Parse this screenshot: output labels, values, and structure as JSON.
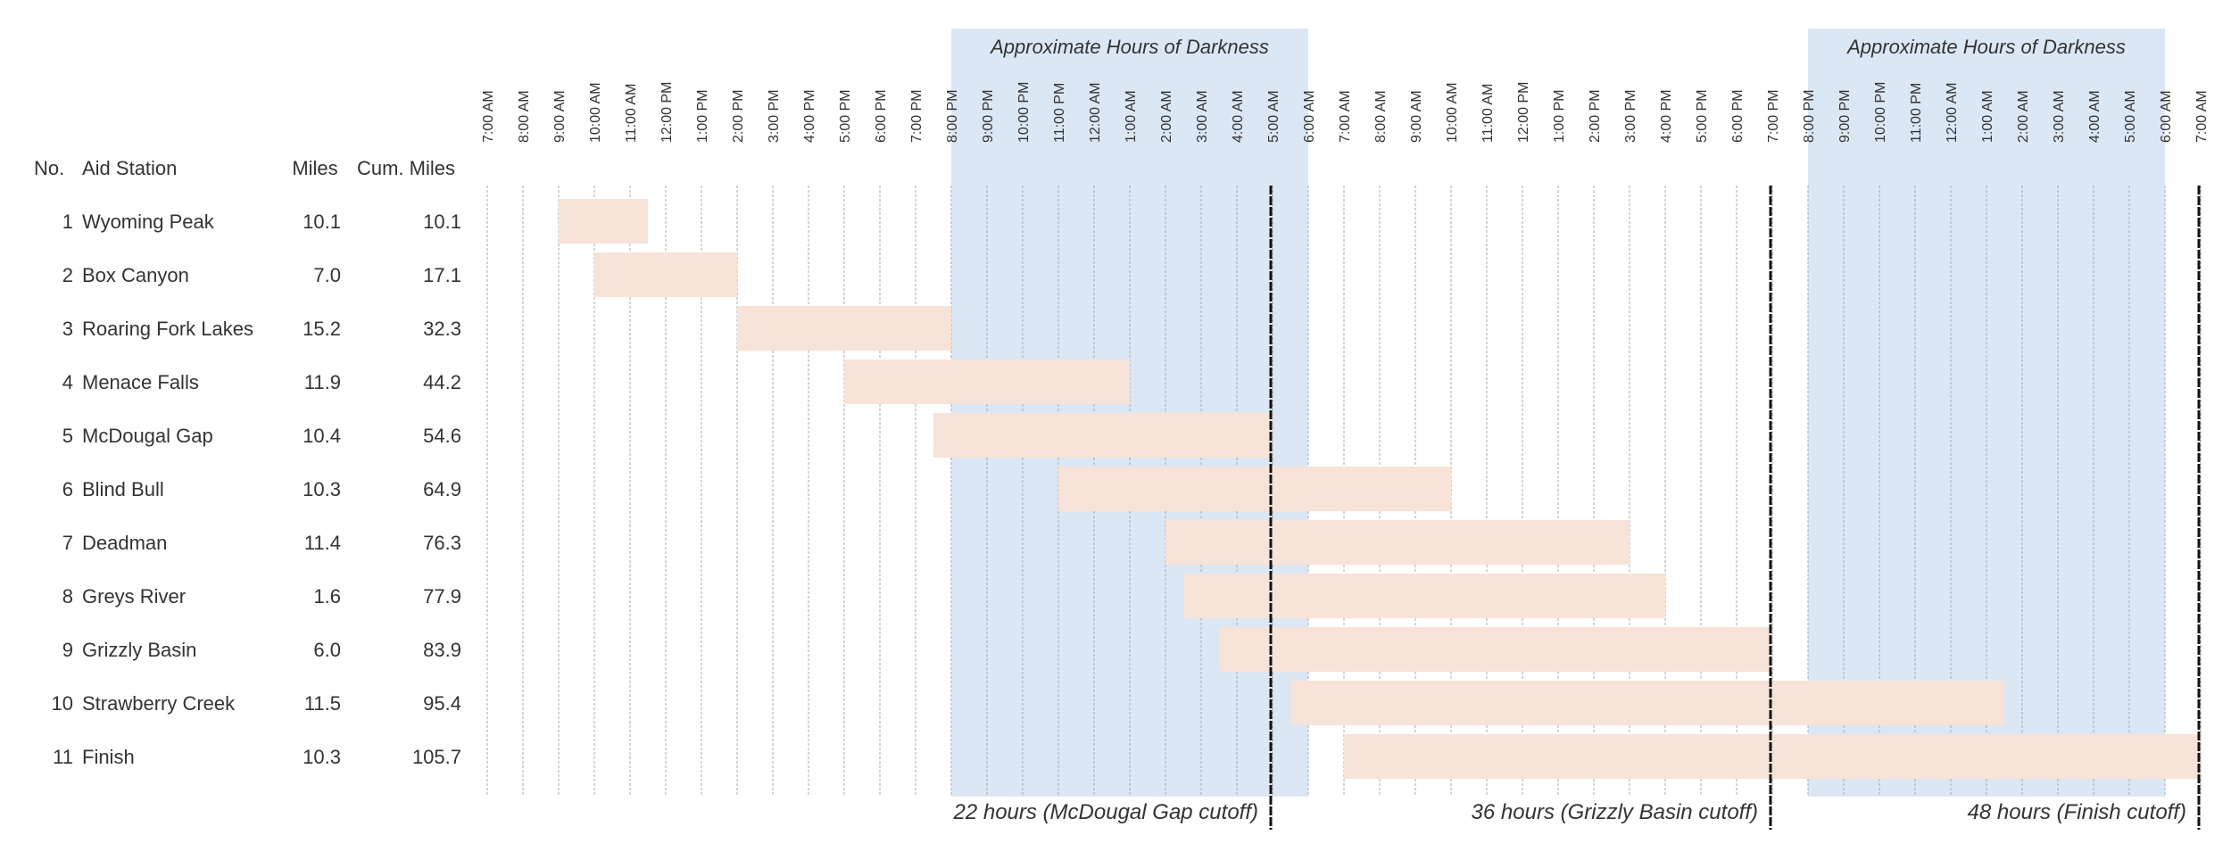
{
  "chart_data": {
    "type": "gantt",
    "title": "",
    "xlabel": "",
    "ylabel": "",
    "x_unit": "hours from 7:00 AM (day 1)",
    "xlim": [
      0,
      48
    ],
    "grid": true,
    "colors": {
      "bar": "#f7e3d8",
      "darkness": "#dce7f5",
      "cutoff": "#111111",
      "grid": "#aaaaaa"
    },
    "columns": {
      "no": "No.",
      "station": "Aid Station",
      "miles": "Miles",
      "cum": "Cum. Miles"
    },
    "tick_labels": [
      "7:00 AM",
      "8:00 AM",
      "9:00 AM",
      "10:00 AM",
      "11:00 AM",
      "12:00 PM",
      "1:00 PM",
      "2:00 PM",
      "3:00 PM",
      "4:00 PM",
      "5:00 PM",
      "6:00 PM",
      "7:00 PM",
      "8:00 PM",
      "9:00 PM",
      "10:00 PM",
      "11:00 PM",
      "12:00 AM",
      "1:00 AM",
      "2:00 AM",
      "3:00 AM",
      "4:00 AM",
      "5:00 AM",
      "6:00 AM",
      "7:00 AM",
      "8:00 AM",
      "9:00 AM",
      "10:00 AM",
      "11:00 AM",
      "12:00 PM",
      "1:00 PM",
      "2:00 PM",
      "3:00 PM",
      "4:00 PM",
      "5:00 PM",
      "6:00 PM",
      "7:00 PM",
      "8:00 PM",
      "9:00 PM",
      "10:00 PM",
      "11:00 PM",
      "12:00 AM",
      "1:00 AM",
      "2:00 AM",
      "3:00 AM",
      "4:00 AM",
      "5:00 AM",
      "6:00 AM",
      "7:00 AM"
    ],
    "darkness": [
      {
        "label": "Approximate Hours of Darkness",
        "start": 13,
        "end": 23
      },
      {
        "label": "Approximate Hours of Darkness",
        "start": 37,
        "end": 47
      }
    ],
    "cutoffs": [
      {
        "label": "22 hours (McDougal Gap cutoff)",
        "at": 22
      },
      {
        "label": "36 hours (Grizzly Basin cutoff)",
        "at": 36
      },
      {
        "label": "48 hours (Finish cutoff)",
        "at": 48
      }
    ],
    "rows": [
      {
        "no": "1",
        "station": "Wyoming Peak",
        "miles": "10.1",
        "cum": "10.1",
        "start": 2.0,
        "end": 4.5
      },
      {
        "no": "2",
        "station": "Box Canyon",
        "miles": "7.0",
        "cum": "17.1",
        "start": 3.0,
        "end": 7.0
      },
      {
        "no": "3",
        "station": "Roaring Fork Lakes",
        "miles": "15.2",
        "cum": "32.3",
        "start": 7.0,
        "end": 13.0
      },
      {
        "no": "4",
        "station": "Menace Falls",
        "miles": "11.9",
        "cum": "44.2",
        "start": 10.0,
        "end": 18.0
      },
      {
        "no": "5",
        "station": "McDougal Gap",
        "miles": "10.4",
        "cum": "54.6",
        "start": 12.5,
        "end": 22.0
      },
      {
        "no": "6",
        "station": "Blind Bull",
        "miles": "10.3",
        "cum": "64.9",
        "start": 16.0,
        "end": 27.0
      },
      {
        "no": "7",
        "station": "Deadman",
        "miles": "11.4",
        "cum": "76.3",
        "start": 19.0,
        "end": 32.0
      },
      {
        "no": "8",
        "station": "Greys River",
        "miles": "1.6",
        "cum": "77.9",
        "start": 19.5,
        "end": 33.0
      },
      {
        "no": "9",
        "station": "Grizzly Basin",
        "miles": "6.0",
        "cum": "83.9",
        "start": 20.5,
        "end": 36.0
      },
      {
        "no": "10",
        "station": "Strawberry Creek",
        "miles": "11.5",
        "cum": "95.4",
        "start": 22.5,
        "end": 42.5
      },
      {
        "no": "11",
        "station": "Finish",
        "miles": "10.3",
        "cum": "105.7",
        "start": 24.0,
        "end": 48.0
      }
    ]
  }
}
